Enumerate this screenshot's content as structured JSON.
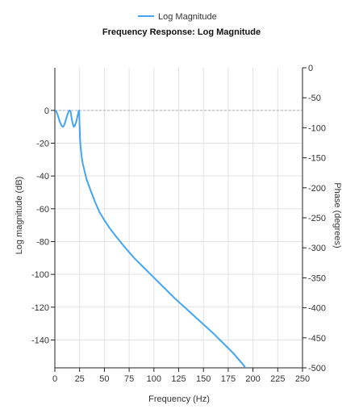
{
  "chart_data": {
    "type": "line",
    "title": "Frequency Response: Log Magnitude",
    "legend": {
      "position": "top-center",
      "entries": [
        "Log Magnitude"
      ]
    },
    "xlabel": "Frequency (Hz)",
    "ylabel": "Log magnitude (dB)",
    "y2label": "Phase (degrees)",
    "xlim": [
      0,
      250
    ],
    "ylim": [
      -157,
      26
    ],
    "y2lim": [
      -500,
      0
    ],
    "xticks": [
      0,
      25,
      50,
      75,
      100,
      125,
      150,
      175,
      200,
      225,
      250
    ],
    "yticks": [
      0,
      -20,
      -40,
      -60,
      -80,
      -100,
      -120,
      -140
    ],
    "y2ticks": [
      0,
      -50,
      -100,
      -150,
      -200,
      -250,
      -300,
      -350,
      -400,
      -450,
      -500
    ],
    "grid": true,
    "zero_reference_line": 0,
    "series": [
      {
        "name": "Log Magnitude",
        "color": "#42a5f5",
        "x": [
          0,
          1,
          2,
          3,
          5,
          7,
          8,
          9,
          10,
          11,
          12,
          13,
          14,
          15,
          16,
          17,
          18,
          19,
          20,
          21,
          22,
          23,
          24,
          24.5,
          25,
          25.5,
          26,
          27,
          28,
          30,
          32,
          35,
          40,
          45,
          50,
          55,
          60,
          70,
          80,
          90,
          100,
          110,
          120,
          130,
          140,
          150,
          160,
          170,
          180,
          190,
          195
        ],
        "y": [
          0,
          -0.3,
          -1.5,
          -3,
          -7,
          -9.5,
          -10,
          -9.5,
          -8,
          -6,
          -4,
          -2,
          -0.5,
          0,
          -1,
          -5,
          -8,
          -10,
          -9.5,
          -8,
          -6,
          -3,
          -0.5,
          0,
          -10,
          -18,
          -22,
          -28,
          -32,
          -37,
          -42,
          -47,
          -55,
          -62,
          -67,
          -71.5,
          -75.5,
          -83,
          -90,
          -96,
          -102,
          -108,
          -114,
          -119.5,
          -125,
          -130.5,
          -136,
          -142,
          -148,
          -155,
          -159
        ]
      }
    ]
  }
}
